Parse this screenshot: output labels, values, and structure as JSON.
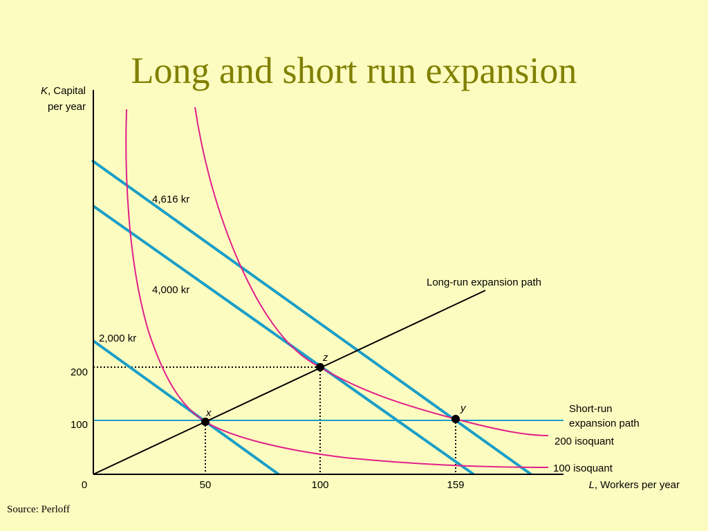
{
  "title": "Long and short run expansion",
  "y_axis_label": {
    "variable": "K",
    "text": ", Capital",
    "line2": "per year"
  },
  "x_axis_label": {
    "variable": "L",
    "text": ", Workers per year"
  },
  "x_ticks": [
    "0",
    "50",
    "100",
    "159"
  ],
  "y_ticks": [
    "200",
    "100"
  ],
  "isocost_labels": [
    "4,616 kr",
    "4,000 kr",
    "2,000 kr"
  ],
  "point_labels": [
    "x",
    "z",
    "y"
  ],
  "curve_labels": {
    "long_run": "Long-run expansion path",
    "short_run_1": "Short-run",
    "short_run_2": "expansion path",
    "isoquant_200": "200 isoquant",
    "isoquant_100": "100 isoquant"
  },
  "source": "Source: Perloff"
}
